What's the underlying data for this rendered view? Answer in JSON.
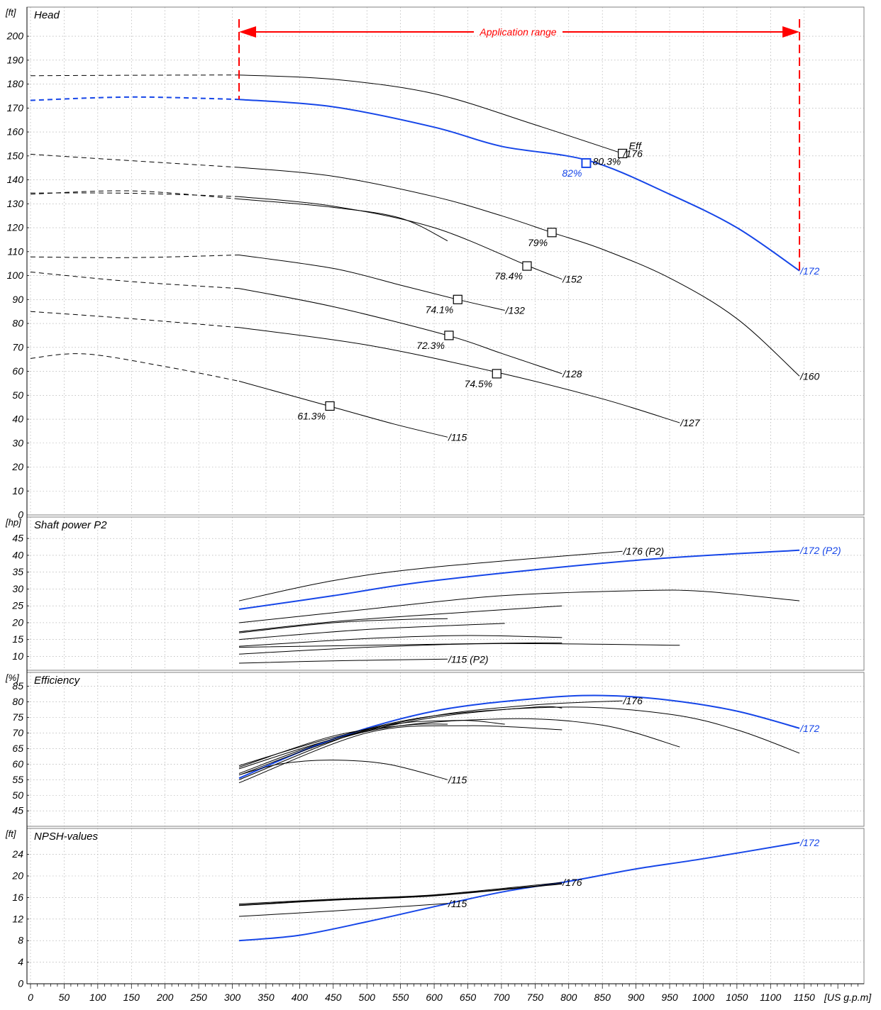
{
  "colors": {
    "grid": "#a0a0a0",
    "axis": "#000000",
    "curve": "#000000",
    "highlight": "#1646e8",
    "range": "#ff0000"
  },
  "labels": {
    "x_unit": "[US g.p.m]",
    "range_label": "Application range",
    "eff_label": "Eff"
  },
  "chart_data": [
    {
      "type": "line",
      "title": "Head",
      "unit": "[ft]",
      "x_ticks": [
        0,
        50,
        100,
        150,
        200,
        250,
        300,
        350,
        400,
        450,
        500,
        550,
        600,
        650,
        700,
        750,
        800,
        850,
        900,
        950,
        1000,
        1050,
        1100,
        1150
      ],
      "xlim": [
        0,
        1242
      ],
      "ylim": [
        0,
        210
      ],
      "y_ticks": [
        0,
        10,
        20,
        30,
        40,
        50,
        60,
        70,
        80,
        90,
        100,
        110,
        120,
        130,
        140,
        150,
        160,
        170,
        180,
        190,
        200
      ],
      "application_range": [
        310,
        1143
      ],
      "series": [
        {
          "name": "/176",
          "highlight": false,
          "dashed": [
            [
              0,
              183.5
            ],
            [
              150,
              183.7
            ],
            [
              310,
              183.8
            ]
          ],
          "solid": [
            [
              310,
              183.8
            ],
            [
              450,
              182
            ],
            [
              600,
              176
            ],
            [
              750,
              163
            ],
            [
              880,
              151
            ]
          ],
          "bep": {
            "x": 880,
            "y": 151,
            "eff": "80.3%"
          }
        },
        {
          "name": "/172",
          "highlight": true,
          "dashed": [
            [
              0,
              173.2
            ],
            [
              150,
              174.6
            ],
            [
              310,
              173.6
            ]
          ],
          "solid": [
            [
              310,
              173.6
            ],
            [
              450,
              170.5
            ],
            [
              600,
              162
            ],
            [
              700,
              154
            ],
            [
              830,
              148
            ],
            [
              950,
              134
            ],
            [
              1050,
              120
            ],
            [
              1143,
              102
            ]
          ],
          "bep": {
            "x": 826,
            "y": 147,
            "eff": "82%"
          }
        },
        {
          "name": "/160",
          "highlight": false,
          "dashed": [
            [
              0,
              150.7
            ],
            [
              150,
              148
            ],
            [
              310,
              145.2
            ]
          ],
          "solid": [
            [
              310,
              145.2
            ],
            [
              450,
              141.5
            ],
            [
              600,
              133
            ],
            [
              700,
              125
            ],
            [
              775,
              118
            ],
            [
              850,
              111
            ],
            [
              950,
              99
            ],
            [
              1050,
              82
            ],
            [
              1143,
              58
            ]
          ],
          "bep": {
            "x": 775,
            "y": 118,
            "eff": "79%"
          }
        },
        {
          "name": "/152",
          "highlight": false,
          "dashed": [
            [
              0,
              134.5
            ],
            [
              150,
              134.4
            ],
            [
              310,
              133
            ]
          ],
          "solid": [
            [
              310,
              133
            ],
            [
              450,
              129
            ],
            [
              600,
              120
            ],
            [
              740,
              104
            ],
            [
              790,
              98.5
            ]
          ],
          "bep": {
            "x": 738,
            "y": 104,
            "eff": "78.4%"
          }
        },
        {
          "name": "",
          "highlight": false,
          "dashed": [
            [
              0,
              134
            ],
            [
              150,
              135.4
            ],
            [
              310,
              132
            ]
          ],
          "solid": [
            [
              310,
              132
            ],
            [
              450,
              128.5
            ],
            [
              550,
              124
            ],
            [
              620,
              114.5
            ]
          ],
          "bep": null
        },
        {
          "name": "/132",
          "highlight": false,
          "dashed": [
            [
              0,
              107.8
            ],
            [
              150,
              107.5
            ],
            [
              310,
              108.6
            ]
          ],
          "solid": [
            [
              310,
              108.6
            ],
            [
              450,
              103
            ],
            [
              550,
              96
            ],
            [
              635,
              90
            ],
            [
              705,
              85.5
            ]
          ],
          "bep": {
            "x": 635,
            "y": 90,
            "eff": "74.1%"
          }
        },
        {
          "name": "/128",
          "highlight": false,
          "dashed": [
            [
              0,
              101.5
            ],
            [
              150,
              97.5
            ],
            [
              310,
              94.6
            ]
          ],
          "solid": [
            [
              310,
              94.6
            ],
            [
              450,
              87
            ],
            [
              620,
              75
            ],
            [
              700,
              67.5
            ],
            [
              790,
              59
            ]
          ],
          "bep": {
            "x": 622,
            "y": 75,
            "eff": "72.3%"
          }
        },
        {
          "name": "/127",
          "highlight": false,
          "dashed": [
            [
              0,
              85
            ],
            [
              150,
              82
            ],
            [
              310,
              78.3
            ]
          ],
          "solid": [
            [
              310,
              78.3
            ],
            [
              500,
              71
            ],
            [
              695,
              59.5
            ],
            [
              850,
              48.5
            ],
            [
              965,
              38.5
            ]
          ],
          "bep": {
            "x": 693,
            "y": 59,
            "eff": "74.5%"
          }
        },
        {
          "name": "/115",
          "highlight": false,
          "dashed": [
            [
              0,
              65.4
            ],
            [
              80,
              67.3
            ],
            [
              200,
              62
            ],
            [
              310,
              55.9
            ]
          ],
          "solid": [
            [
              310,
              55.9
            ],
            [
              450,
              45
            ],
            [
              540,
              38
            ],
            [
              620,
              32.5
            ]
          ],
          "bep": {
            "x": 445,
            "y": 45.5,
            "eff": "61.3%"
          }
        }
      ]
    },
    {
      "type": "line",
      "title": "Shaft power P2",
      "unit": "[hp]",
      "ylim": [
        5,
        50
      ],
      "y_ticks": [
        10,
        15,
        20,
        25,
        30,
        35,
        40,
        45
      ],
      "series": [
        {
          "name": "/176 (P2)",
          "highlight": false,
          "solid": [
            [
              310,
              26.5
            ],
            [
              450,
              32.5
            ],
            [
              600,
              36.5
            ],
            [
              880,
              41.2
            ]
          ]
        },
        {
          "name": "/172 (P2)",
          "highlight": true,
          "solid": [
            [
              310,
              24
            ],
            [
              450,
              28
            ],
            [
              600,
              32.5
            ],
            [
              900,
              38.5
            ],
            [
              1143,
              41.5
            ]
          ]
        },
        {
          "name": "",
          "highlight": false,
          "solid": [
            [
              310,
              20
            ],
            [
              500,
              24
            ],
            [
              700,
              28
            ],
            [
              900,
              29.5
            ],
            [
              1000,
              29.3
            ],
            [
              1143,
              26.5
            ]
          ]
        },
        {
          "name": "",
          "highlight": false,
          "solid": [
            [
              310,
              17.3
            ],
            [
              450,
              20.3
            ],
            [
              600,
              22.5
            ],
            [
              790,
              25
            ]
          ]
        },
        {
          "name": "",
          "highlight": false,
          "solid": [
            [
              310,
              17
            ],
            [
              450,
              20
            ],
            [
              560,
              21
            ],
            [
              620,
              21.2
            ]
          ]
        },
        {
          "name": "",
          "highlight": false,
          "solid": [
            [
              310,
              15
            ],
            [
              500,
              18
            ],
            [
              705,
              19.8
            ]
          ]
        },
        {
          "name": "",
          "highlight": false,
          "solid": [
            [
              310,
              13
            ],
            [
              500,
              15.3
            ],
            [
              650,
              16.2
            ],
            [
              790,
              15.6
            ]
          ]
        },
        {
          "name": "",
          "highlight": false,
          "solid": [
            [
              310,
              10.7
            ],
            [
              500,
              12.7
            ],
            [
              700,
              13.8
            ],
            [
              965,
              13.3
            ]
          ]
        },
        {
          "name": "",
          "highlight": false,
          "solid": [
            [
              310,
              12.7
            ],
            [
              700,
              13.9
            ],
            [
              790,
              14
            ]
          ]
        },
        {
          "name": "/115 (P2)",
          "highlight": false,
          "solid": [
            [
              310,
              8
            ],
            [
              450,
              8.7
            ],
            [
              620,
              9.2
            ]
          ]
        }
      ]
    },
    {
      "type": "line",
      "title": "Efficiency",
      "unit": "[%]",
      "ylim": [
        40,
        88
      ],
      "y_ticks": [
        45,
        50,
        55,
        60,
        65,
        70,
        75,
        80,
        85
      ],
      "series": [
        {
          "name": "/176",
          "highlight": false,
          "solid": [
            [
              310,
              57
            ],
            [
              450,
              68
            ],
            [
              600,
              75.5
            ],
            [
              750,
              79
            ],
            [
              880,
              80.3
            ]
          ]
        },
        {
          "name": "/172",
          "highlight": true,
          "solid": [
            [
              310,
              55.5
            ],
            [
              450,
              68
            ],
            [
              600,
              77
            ],
            [
              750,
              81
            ],
            [
              850,
              82
            ],
            [
              950,
              80.5
            ],
            [
              1050,
              77
            ],
            [
              1143,
              71.5
            ]
          ]
        },
        {
          "name": "",
          "highlight": false,
          "solid": [
            [
              310,
              59.5
            ],
            [
              450,
              68.5
            ],
            [
              600,
              75.5
            ],
            [
              800,
              78.3
            ],
            [
              950,
              76
            ],
            [
              1050,
              71
            ],
            [
              1143,
              63.5
            ]
          ]
        },
        {
          "name": "",
          "highlight": false,
          "solid": [
            [
              310,
              58.5
            ],
            [
              450,
              68
            ],
            [
              600,
              75
            ],
            [
              750,
              78.3
            ],
            [
              790,
              78
            ]
          ]
        },
        {
          "name": "",
          "highlight": false,
          "solid": [
            [
              310,
              59
            ],
            [
              450,
              69
            ],
            [
              560,
              72.5
            ],
            [
              620,
              72.8
            ]
          ]
        },
        {
          "name": "",
          "highlight": false,
          "solid": [
            [
              310,
              55
            ],
            [
              500,
              71
            ],
            [
              630,
              74
            ],
            [
              705,
              72.8
            ]
          ]
        },
        {
          "name": "",
          "highlight": false,
          "solid": [
            [
              310,
              54
            ],
            [
              500,
              70
            ],
            [
              650,
              72.3
            ],
            [
              790,
              71
            ]
          ]
        },
        {
          "name": "",
          "highlight": false,
          "solid": [
            [
              310,
              56.5
            ],
            [
              500,
              70.5
            ],
            [
              700,
              74.5
            ],
            [
              850,
              72.5
            ],
            [
              965,
              65.5
            ]
          ]
        },
        {
          "name": "/115",
          "highlight": false,
          "solid": [
            [
              310,
              56.5
            ],
            [
              370,
              60
            ],
            [
              445,
              61.3
            ],
            [
              530,
              60
            ],
            [
              620,
              55
            ]
          ]
        }
      ]
    },
    {
      "type": "line",
      "title": "NPSH-values",
      "unit": "[ft]",
      "ylim": [
        0,
        28
      ],
      "y_ticks": [
        0,
        4,
        8,
        12,
        16,
        20,
        24
      ],
      "series": [
        {
          "name": "/172",
          "highlight": true,
          "solid": [
            [
              310,
              8
            ],
            [
              400,
              9
            ],
            [
              500,
              11.5
            ],
            [
              600,
              14.3
            ],
            [
              700,
              17
            ],
            [
              800,
              19
            ],
            [
              900,
              21.3
            ],
            [
              1000,
              23.2
            ],
            [
              1143,
              26.2
            ]
          ]
        },
        {
          "name": "/176",
          "highlight": false,
          "solid": [
            [
              310,
              14.8
            ],
            [
              450,
              15.7
            ],
            [
              600,
              16.5
            ],
            [
              790,
              18.8
            ]
          ]
        },
        {
          "name": "",
          "highlight": false,
          "solid": [
            [
              310,
              14.6
            ],
            [
              450,
              15.6
            ],
            [
              600,
              16.4
            ],
            [
              790,
              18.6
            ]
          ]
        },
        {
          "name": "",
          "highlight": false,
          "solid": [
            [
              310,
              14.5
            ],
            [
              450,
              15.5
            ],
            [
              600,
              16.3
            ],
            [
              790,
              18.5
            ]
          ]
        },
        {
          "name": "/115",
          "highlight": false,
          "solid": [
            [
              310,
              12.5
            ],
            [
              450,
              13.5
            ],
            [
              550,
              14.3
            ],
            [
              620,
              14.9
            ]
          ]
        }
      ]
    }
  ]
}
